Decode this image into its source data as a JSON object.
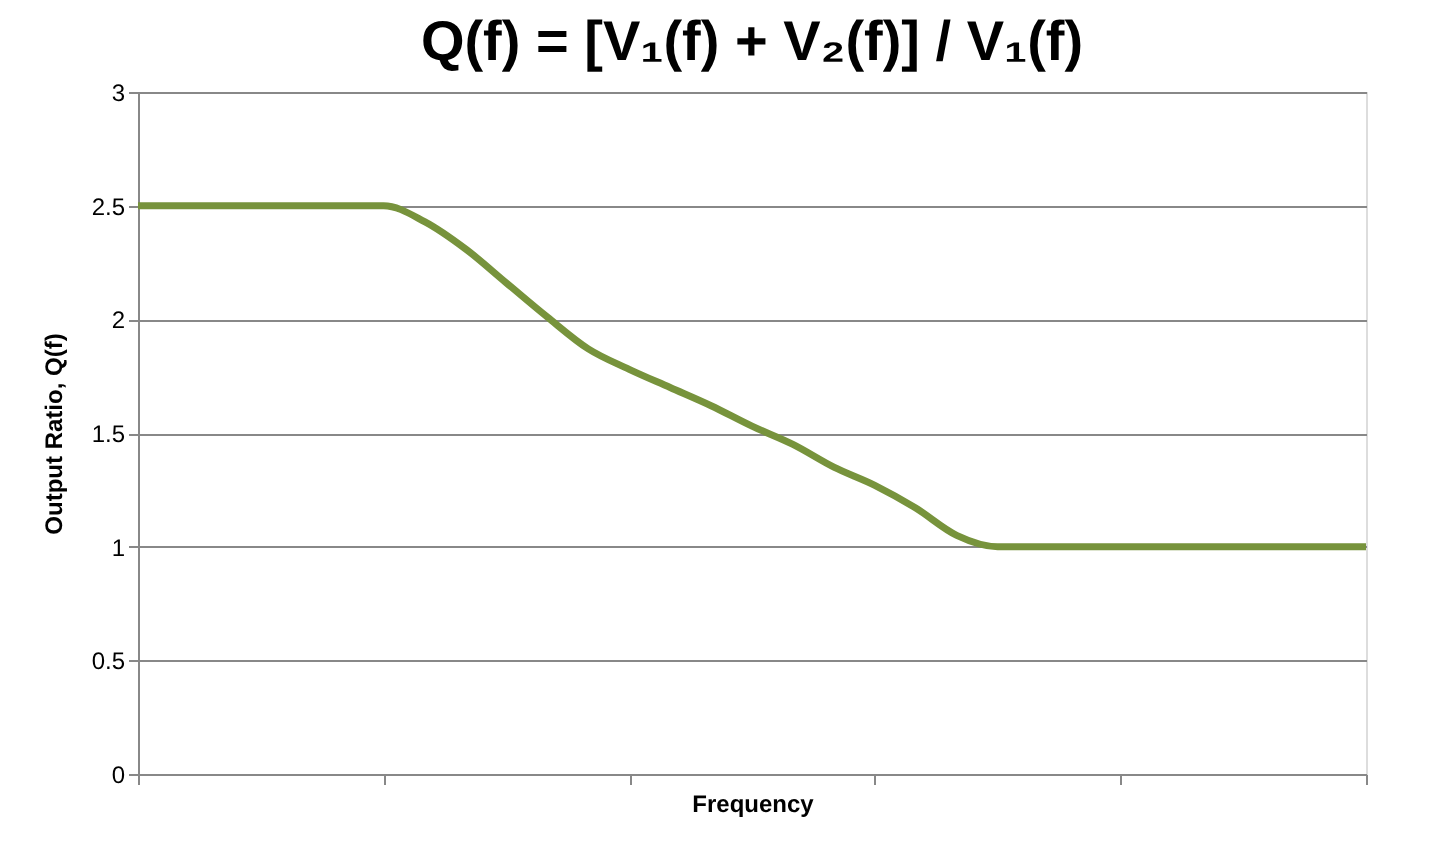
{
  "chart_data": {
    "type": "line",
    "title": "Q(f) = [V₁(f) + V₂(f)] / V₁(f)",
    "xlabel": "Frequency",
    "ylabel": "Output Ratio, Q(f)",
    "categories": [
      null,
      null,
      null,
      null,
      null,
      null,
      null,
      null,
      null,
      null,
      null,
      null,
      null,
      null,
      null,
      null,
      null,
      null,
      null,
      null,
      null,
      null,
      null,
      null,
      null,
      null,
      null,
      null,
      null,
      null,
      null
    ],
    "series": [
      {
        "color": "#77933c",
        "values": [
          2.5,
          2.5,
          2.5,
          2.5,
          2.5,
          2.5,
          2.5,
          2.43,
          2.31,
          2.16,
          2.01,
          1.87,
          1.78,
          1.7,
          1.62,
          1.53,
          1.45,
          1.35,
          1.27,
          1.17,
          1.05,
          1.0,
          1.0,
          1.0,
          1.0,
          1.0,
          1.0,
          1.0,
          1.0,
          1.0,
          1.0
        ]
      }
    ],
    "ylim": [
      0,
      3
    ],
    "yticks": [
      0,
      0.5,
      1,
      1.5,
      2,
      2.5,
      3
    ],
    "grid": "y",
    "tick_labels": "y",
    "marker": "none",
    "line_style": "solid"
  }
}
